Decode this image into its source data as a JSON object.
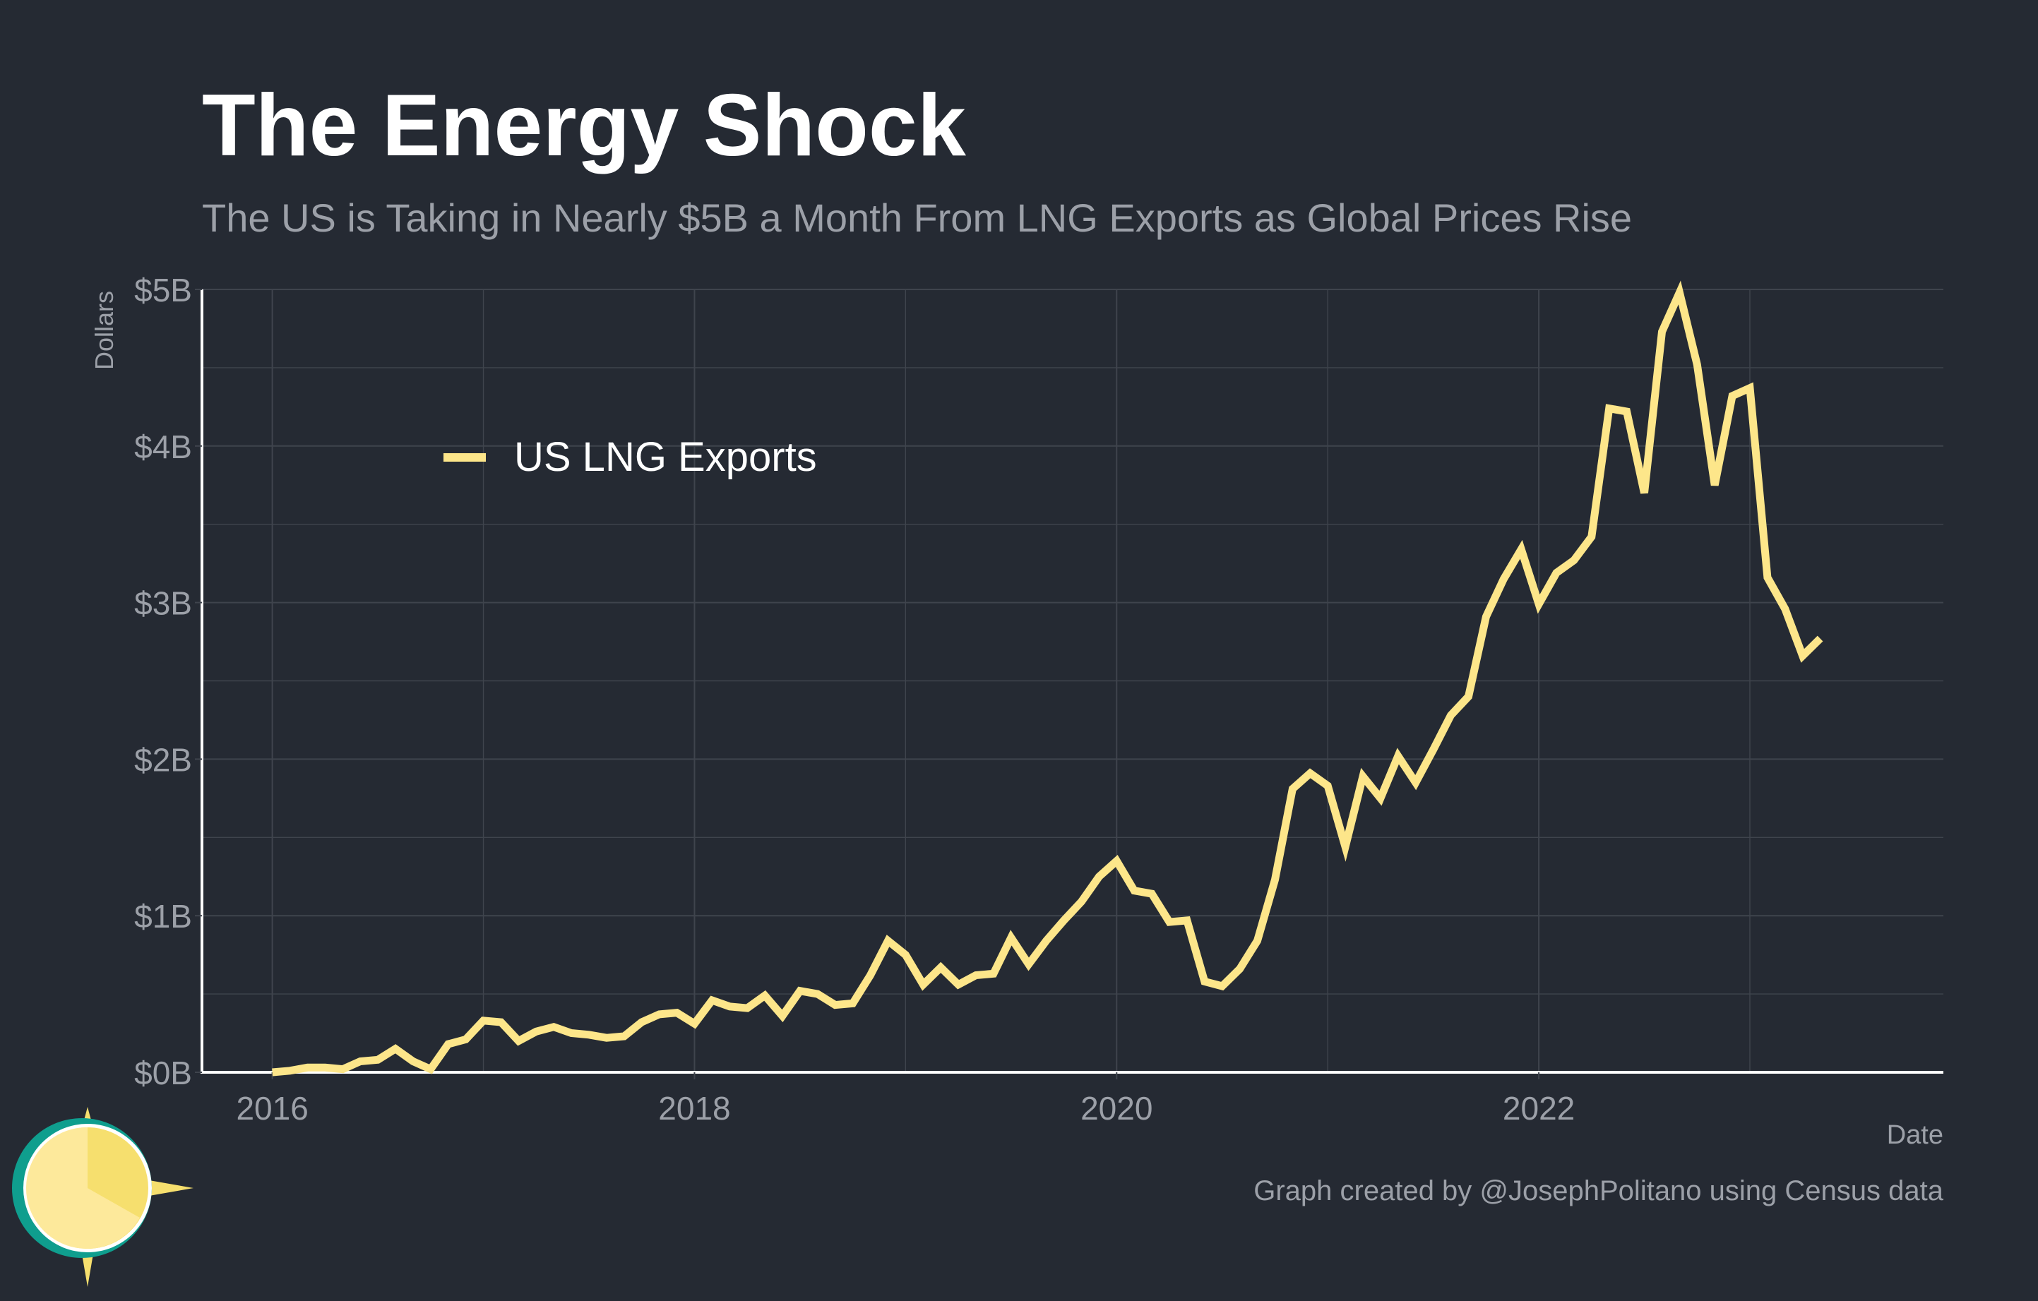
{
  "colors": {
    "background": "#252a33",
    "grid": "#3f444d",
    "axis": "#ffffff",
    "series": "#fde68a",
    "muted_text": "#9ca0a8",
    "title": "#ffffff",
    "logo_teal": "#0f9e8e",
    "logo_sun": "#f6df6e",
    "logo_face": "#fde99b"
  },
  "logo": {
    "icon": "sun-icon"
  },
  "chart_data": {
    "type": "line",
    "title": "The Energy Shock",
    "subtitle": "The US is Taking in Nearly $5B a Month From LNG Exports as Global Prices Rise",
    "xlabel": "Date",
    "ylabel": "Dollars",
    "caption": "Graph created by @JosephPolitano using Census data",
    "xlim": [
      "2015-09",
      "2023-12"
    ],
    "ylim": [
      0,
      5
    ],
    "y_unit": "billions of dollars",
    "x_ticks": [
      "2016",
      "2018",
      "2020",
      "2022"
    ],
    "y_ticks": [
      "$0B",
      "$1B",
      "$2B",
      "$3B",
      "$4B",
      "$5B"
    ],
    "y_tick_values": [
      0,
      1,
      2,
      3,
      4,
      5
    ],
    "grid": true,
    "legend_position": "top-left",
    "series": [
      {
        "name": "US LNG Exports",
        "x": [
          "2016-01",
          "2016-02",
          "2016-03",
          "2016-04",
          "2016-05",
          "2016-06",
          "2016-07",
          "2016-08",
          "2016-09",
          "2016-10",
          "2016-11",
          "2016-12",
          "2017-01",
          "2017-02",
          "2017-03",
          "2017-04",
          "2017-05",
          "2017-06",
          "2017-07",
          "2017-08",
          "2017-09",
          "2017-10",
          "2017-11",
          "2017-12",
          "2018-01",
          "2018-02",
          "2018-03",
          "2018-04",
          "2018-05",
          "2018-06",
          "2018-07",
          "2018-08",
          "2018-09",
          "2018-10",
          "2018-11",
          "2018-12",
          "2019-01",
          "2019-02",
          "2019-03",
          "2019-04",
          "2019-05",
          "2019-06",
          "2019-07",
          "2019-08",
          "2019-09",
          "2019-10",
          "2019-11",
          "2019-12",
          "2020-01",
          "2020-02",
          "2020-03",
          "2020-04",
          "2020-05",
          "2020-06",
          "2020-07",
          "2020-08",
          "2020-09",
          "2020-10",
          "2020-11",
          "2020-12",
          "2021-01",
          "2021-02",
          "2021-03",
          "2021-04",
          "2021-05",
          "2021-06",
          "2021-07",
          "2021-08",
          "2021-09",
          "2021-10",
          "2021-11",
          "2021-12",
          "2022-01",
          "2022-02",
          "2022-03",
          "2022-04",
          "2022-05",
          "2022-06",
          "2022-07",
          "2022-08",
          "2022-09",
          "2022-10",
          "2022-11",
          "2022-12",
          "2023-01",
          "2023-02",
          "2023-03",
          "2023-04",
          "2023-05"
        ],
        "values": [
          0.0,
          0.01,
          0.03,
          0.03,
          0.02,
          0.07,
          0.08,
          0.15,
          0.07,
          0.02,
          0.18,
          0.21,
          0.33,
          0.32,
          0.2,
          0.26,
          0.29,
          0.25,
          0.24,
          0.22,
          0.23,
          0.32,
          0.37,
          0.38,
          0.31,
          0.46,
          0.42,
          0.41,
          0.49,
          0.36,
          0.52,
          0.5,
          0.43,
          0.44,
          0.62,
          0.84,
          0.75,
          0.56,
          0.67,
          0.56,
          0.62,
          0.63,
          0.86,
          0.69,
          0.84,
          0.97,
          1.09,
          1.25,
          1.35,
          1.16,
          1.14,
          0.96,
          0.97,
          0.58,
          0.55,
          0.66,
          0.84,
          1.23,
          1.81,
          1.91,
          1.83,
          1.44,
          1.89,
          1.75,
          2.02,
          1.85,
          2.06,
          2.28,
          2.4,
          2.91,
          3.15,
          3.34,
          2.99,
          3.19,
          3.27,
          3.42,
          4.24,
          4.22,
          3.7,
          4.73,
          4.98,
          4.52,
          3.75,
          4.32,
          4.37,
          3.16,
          2.96,
          2.66,
          2.77
        ]
      }
    ]
  }
}
